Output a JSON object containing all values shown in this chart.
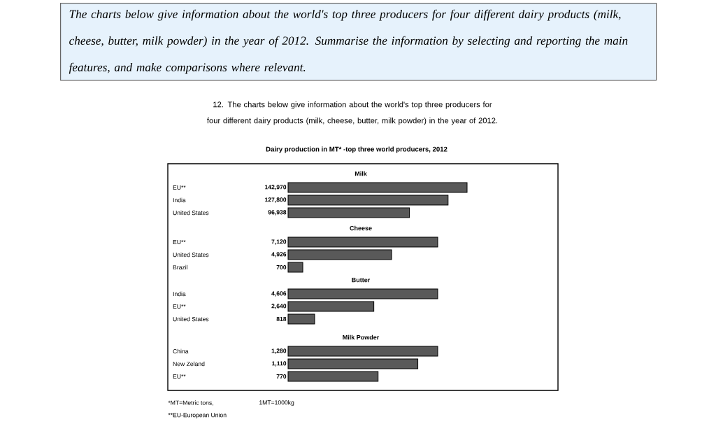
{
  "chart_data": [
    {
      "type": "bar",
      "orientation": "horizontal",
      "title": "Dairy production in MT*  -top three world producers, 2012",
      "subtitle": "Milk",
      "categories": [
        "EU**",
        "India",
        "United States"
      ],
      "values": [
        142970,
        127800,
        96938
      ],
      "value_labels": [
        "142,970",
        "127,800",
        "96,938"
      ],
      "color": "#595959",
      "tick_labels": "y",
      "annotations": [
        "The charts below give information about the world's top three producers for four different dairy products (milk, cheese, butter, milk powder) in the year of 2012. Summarise the information by selecting and reporting the main features, and make comparisons where relevant.",
        "12. The charts below give information about the world's top three producers for four different dairy products (milk, cheese, butter, milk powder) in the year of 2012."
      ]
    },
    {
      "type": "bar",
      "orientation": "horizontal",
      "title": "Cheese",
      "categories": [
        "EU**",
        "United States",
        "Brazil"
      ],
      "values": [
        7120,
        4926,
        700
      ],
      "value_labels": [
        "7,120",
        "4,926",
        "700"
      ],
      "color": "#595959",
      "tick_labels": "y"
    },
    {
      "type": "bar",
      "orientation": "horizontal",
      "title": "Butter",
      "categories": [
        "India",
        "EU**",
        "United States"
      ],
      "values": [
        4606,
        2640,
        818
      ],
      "value_labels": [
        "4,606",
        "2,640",
        "818"
      ],
      "color": "#595959",
      "tick_labels": "y"
    },
    {
      "type": "bar",
      "orientation": "horizontal",
      "title": "Milk Powder",
      "categories": [
        "China",
        "New Zeland",
        "EU**"
      ],
      "values": [
        1280,
        1110,
        770
      ],
      "value_labels": [
        "1,280",
        "1,110",
        "770"
      ],
      "color": "#595959",
      "tick_labels": "y",
      "annotations": [
        "*MT=Metric tons,",
        "1MT=1000kg",
        "**EU-European Union"
      ]
    }
  ]
}
